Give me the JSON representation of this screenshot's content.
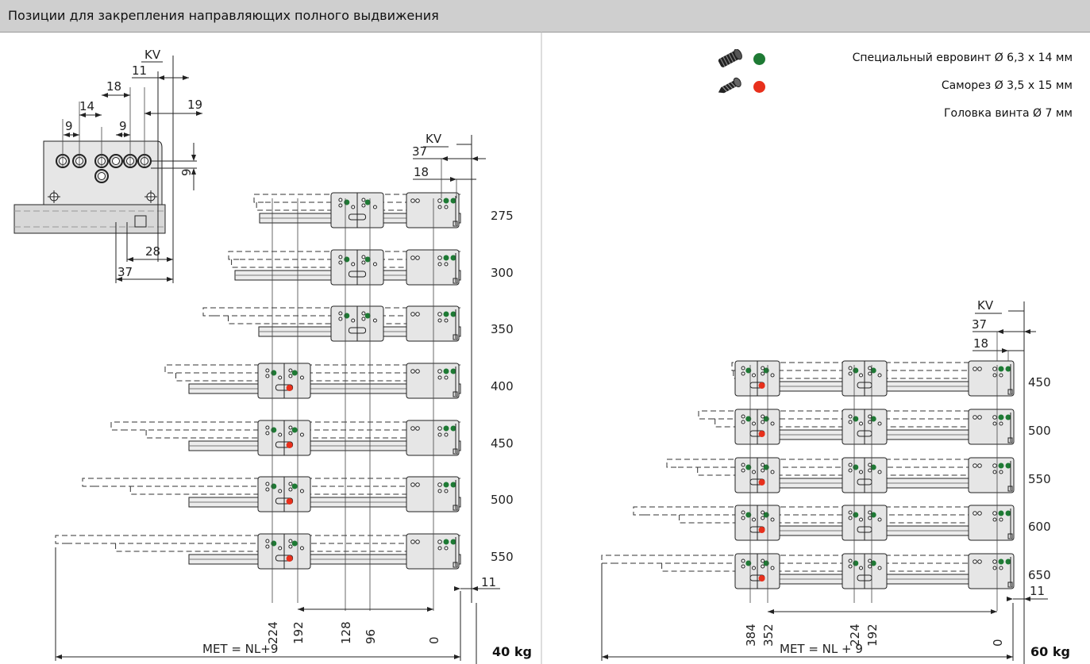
{
  "title": "Позиции для закрепления направляющих полного выдвижения",
  "legend": [
    {
      "icon": "euro-screw-icon",
      "color": "#1e7a34",
      "text": "Специальный евровинт Ø 6,3 x 14 мм"
    },
    {
      "icon": "wood-screw-icon",
      "color": "#e8301c",
      "text": "Саморез Ø 3,5 x 15 мм"
    },
    {
      "icon": "",
      "color": "",
      "text": "Головка винта Ø 7 мм"
    }
  ],
  "detail": {
    "labels": {
      "kv": "KV",
      "d11": "11",
      "d18": "18",
      "d14": "14",
      "d19": "19",
      "d9a": "9",
      "d9b": "9",
      "d9v": "9",
      "d28": "28",
      "d37": "37"
    }
  },
  "left": {
    "kv": "KV",
    "d37": "37",
    "d18": "18",
    "d11": "11",
    "lengths": [
      "275",
      "300",
      "350",
      "400",
      "450",
      "500",
      "550"
    ],
    "positions": [
      "224",
      "192",
      "128",
      "96",
      "0"
    ],
    "met": "MET = NL+9",
    "weight": "40 kg"
  },
  "right": {
    "kv": "KV",
    "d37": "37",
    "d18": "18",
    "d11": "11",
    "lengths": [
      "450",
      "500",
      "550",
      "600",
      "650"
    ],
    "positions": [
      "384",
      "352",
      "224",
      "192",
      "0"
    ],
    "met": "MET = NL + 9",
    "weight": "60 kg"
  }
}
